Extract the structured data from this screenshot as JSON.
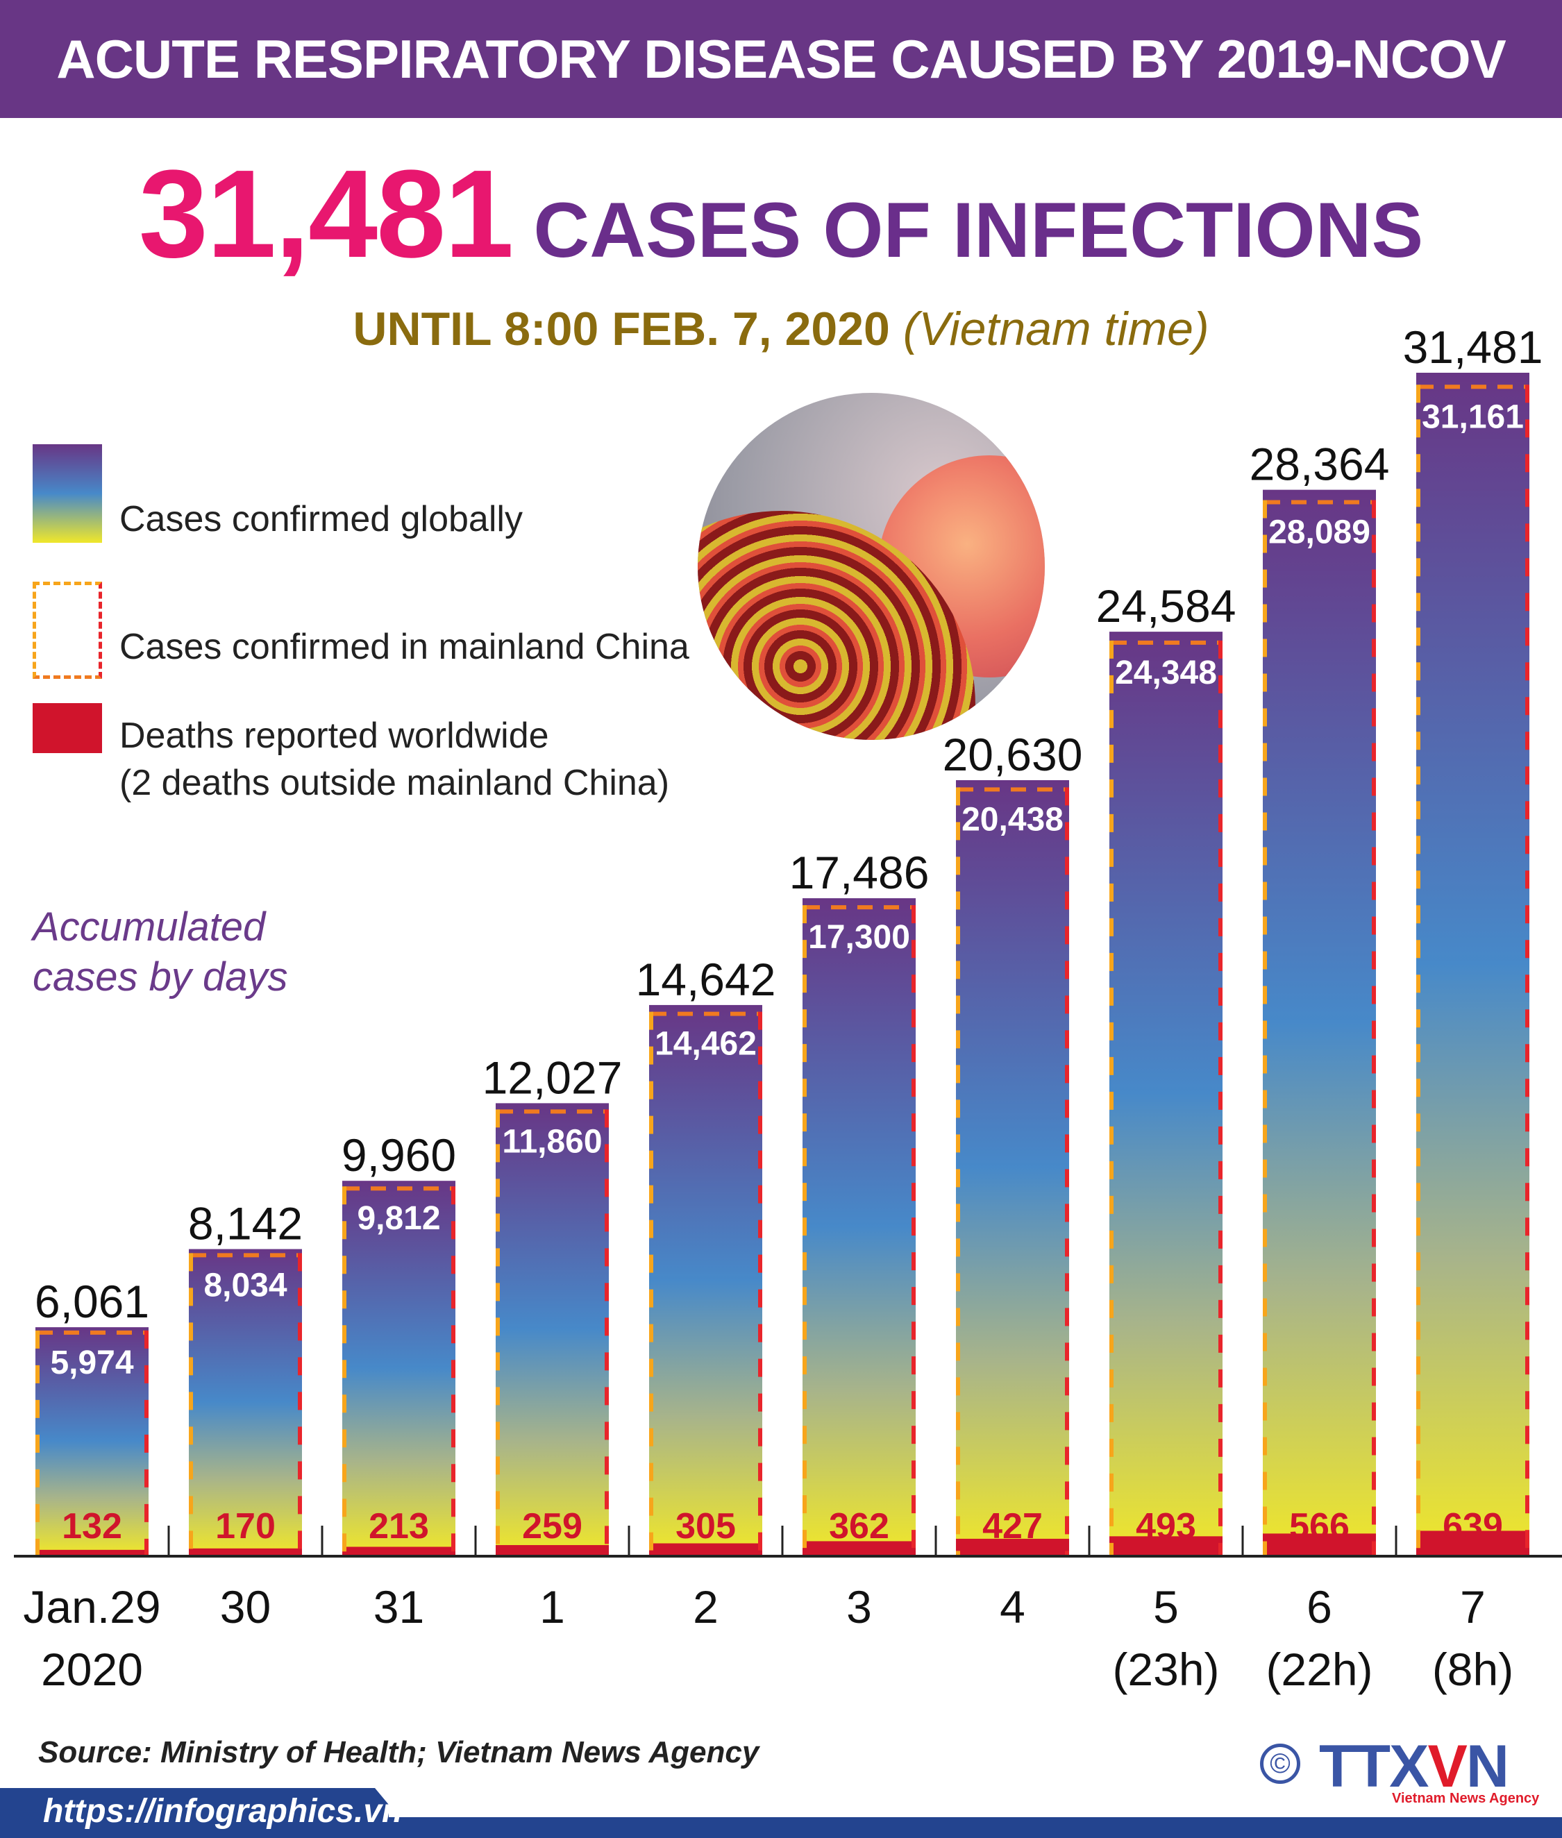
{
  "header": {
    "title": "ACUTE RESPIRATORY DISEASE CAUSED BY 2019-NCOV"
  },
  "headline": {
    "number": "31,481",
    "text": "CASES OF INFECTIONS"
  },
  "subtitle": {
    "main": "UNTIL 8:00 FEB. 7, 2020",
    "note": "(Vietnam time)"
  },
  "legend": {
    "global": "Cases confirmed globally",
    "china": "Cases confirmed in mainland China",
    "deaths_line1": "Deaths reported worldwide",
    "deaths_line2": "(2 deaths outside mainland China)"
  },
  "annotation": {
    "line1": "Accumulated",
    "line2": "cases by days"
  },
  "source": "Source: Ministry of Health; Vietnam News Agency",
  "url": "https://infographics.vn",
  "logo": {
    "text": "TTXVN",
    "sub": "Vietnam News Agency",
    "copyright": "©"
  },
  "colors": {
    "header": "#683685",
    "accent_pink": "#e8176f",
    "purple": "#6a2e8b",
    "deaths": "#d0142c",
    "china_dash_left": "#f7a51b",
    "china_dash_right": "#e8252b",
    "gradient": [
      "#683685",
      "#4789c9",
      "#a8b48a",
      "#f0e72a"
    ]
  },
  "chart_data": {
    "type": "bar",
    "categories": [
      [
        "Jan.29",
        "2020"
      ],
      [
        "30"
      ],
      [
        "31"
      ],
      [
        "1"
      ],
      [
        "2"
      ],
      [
        "3"
      ],
      [
        "4"
      ],
      [
        "5",
        "(23h)"
      ],
      [
        "6",
        "(22h)"
      ],
      [
        "7",
        "(8h)"
      ]
    ],
    "series": [
      {
        "name": "Cases confirmed globally",
        "values": [
          6061,
          8142,
          9960,
          12027,
          14642,
          17486,
          20630,
          24584,
          28364,
          31481
        ],
        "labels": [
          "6,061",
          "8,142",
          "9,960",
          "12,027",
          "14,642",
          "17,486",
          "20,630",
          "24,584",
          "28,364",
          "31,481"
        ]
      },
      {
        "name": "Cases confirmed in mainland China",
        "values": [
          5974,
          8034,
          9812,
          11860,
          14462,
          17300,
          20438,
          24348,
          28089,
          31161
        ],
        "labels": [
          "5,974",
          "8,034",
          "9,812",
          "11,860",
          "14,462",
          "17,300",
          "20,438",
          "24,348",
          "28,089",
          "31,161"
        ]
      },
      {
        "name": "Deaths reported worldwide",
        "values": [
          132,
          170,
          213,
          259,
          305,
          362,
          427,
          493,
          566,
          639
        ],
        "labels": [
          "132",
          "170",
          "213",
          "259",
          "305",
          "362",
          "427",
          "493",
          "566",
          "639"
        ]
      }
    ],
    "ylim": [
      0,
      31481
    ],
    "grid": false
  }
}
